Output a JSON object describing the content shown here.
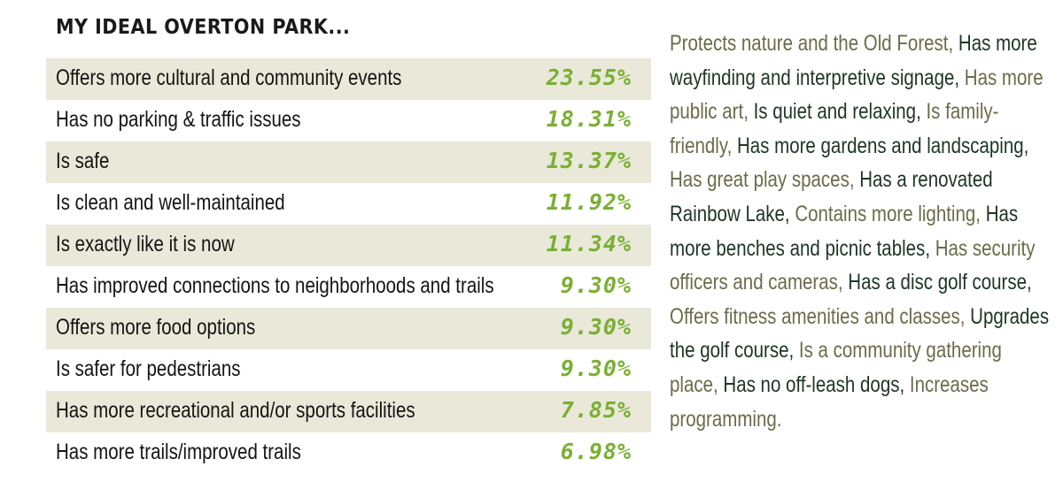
{
  "chart_data": {
    "type": "table",
    "title": "MY IDEAL OVERTON PARK...",
    "rows": [
      {
        "label": "Offers more cultural and community events",
        "value": "23.55%"
      },
      {
        "label": "Has no parking & traffic issues",
        "value": "18.31%"
      },
      {
        "label": "Is safe",
        "value": "13.37%"
      },
      {
        "label": "Is clean and well-maintained",
        "value": "11.92%"
      },
      {
        "label": "Is exactly like it is now",
        "value": "11.34%"
      },
      {
        "label": "Has improved connections to neighborhoods and trails",
        "value": "9.30%"
      },
      {
        "label": "Offers more food options",
        "value": "9.30%"
      },
      {
        "label": "Is safer for pedestrians",
        "value": "9.30%"
      },
      {
        "label": "Has more recreational and/or sports facilities",
        "value": "7.85%"
      },
      {
        "label": "Has more trails/improved trails",
        "value": "6.98%"
      }
    ],
    "other_responses": [
      "Protects nature and the Old Forest",
      "Has more wayfinding and interpretive signage",
      "Has more public art",
      "Is quiet and relaxing",
      "Is family-friendly",
      "Has more gardens and landscaping",
      "Has great play spaces",
      "Has a renovated Rainbow Lake",
      "Contains more lighting",
      "Has more benches and picnic tables",
      "Has security officers and cameras",
      "Has a disc golf course",
      "Offers fitness amenities and classes",
      "Upgrades the golf course",
      "Is a community gathering place",
      "Has no off-leash dogs",
      "Increases programming"
    ],
    "other_responses_separator": ", ",
    "other_responses_terminator": ".",
    "colors": {
      "row_shade": "#e9e8d9",
      "value_text": "#7ab032",
      "list_item_a": "#6b6b4a",
      "list_item_b": "#1f3524"
    }
  }
}
